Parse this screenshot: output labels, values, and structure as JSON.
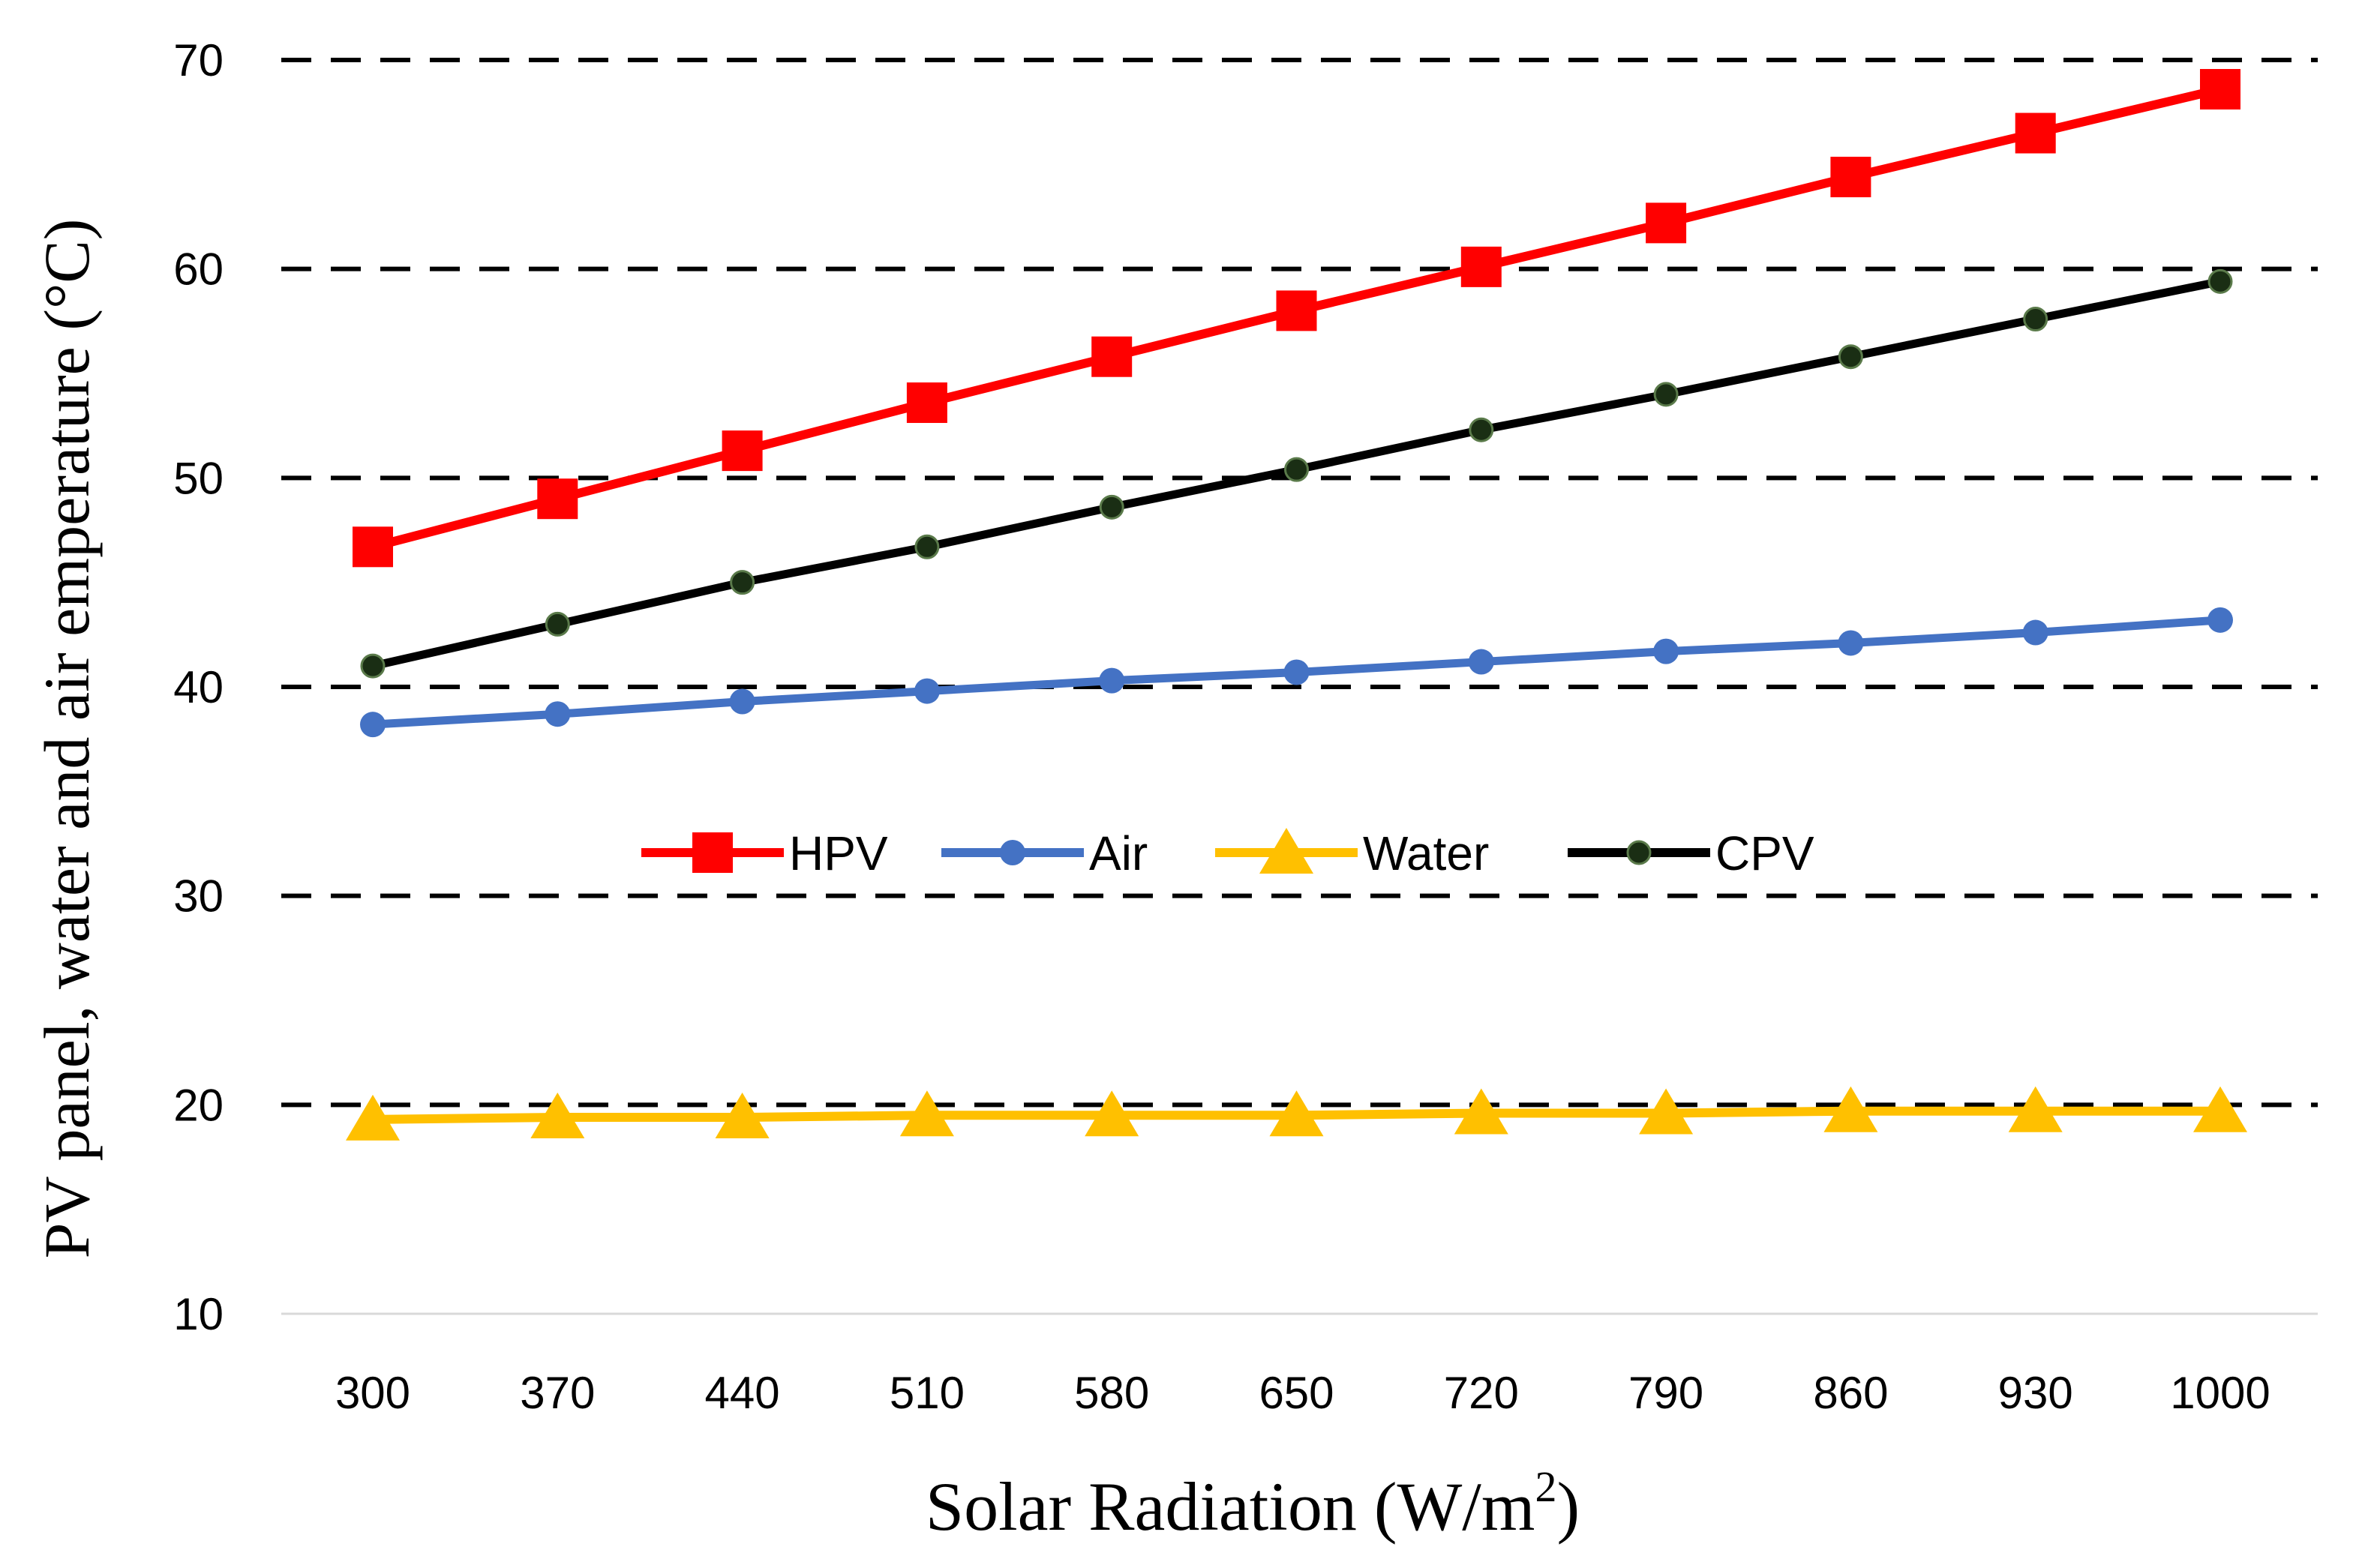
{
  "chart_data": {
    "type": "line",
    "title": "",
    "x": [
      "300",
      "370",
      "440",
      "510",
      "580",
      "650",
      "720",
      "790",
      "860",
      "930",
      "1000"
    ],
    "xlabel": "Solar Radiation (W/m",
    "xlabel_sup": "2",
    "xlabel_end": ")",
    "ylabel": "PV panel, water and air emperature (°C)",
    "ylim": [
      10,
      70
    ],
    "yticks": [
      "10",
      "20",
      "30",
      "40",
      "50",
      "60",
      "70"
    ],
    "grid": "dashed horizontal",
    "legend_position": "center",
    "series": [
      {
        "name": "HPV",
        "color": "#ff0000",
        "marker": "square",
        "values": [
          46.7,
          49.0,
          51.3,
          53.6,
          55.8,
          58.0,
          60.1,
          62.2,
          64.4,
          66.5,
          68.6
        ]
      },
      {
        "name": "Air",
        "color": "#4472c4",
        "marker": "circle",
        "values": [
          38.2,
          38.7,
          39.3,
          39.8,
          40.3,
          40.7,
          41.2,
          41.7,
          42.1,
          42.6,
          43.2
        ]
      },
      {
        "name": "Water",
        "color": "#ffc000",
        "marker": "triangle",
        "values": [
          19.3,
          19.4,
          19.4,
          19.5,
          19.5,
          19.5,
          19.6,
          19.6,
          19.7,
          19.7,
          19.7
        ]
      },
      {
        "name": "CPV",
        "color": "#000000",
        "marker": "dot",
        "values": [
          41.0,
          43.0,
          45.0,
          46.7,
          48.6,
          50.4,
          52.3,
          54.0,
          55.8,
          57.6,
          59.4
        ]
      }
    ]
  }
}
